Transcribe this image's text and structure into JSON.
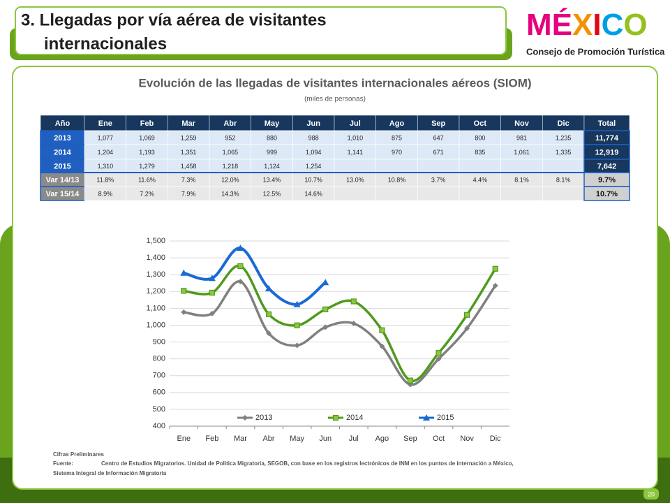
{
  "header": {
    "title_lines": [
      "3. Llegadas por vía aérea de visitantes",
      "internacionales"
    ],
    "logo_letters": [
      "M",
      "É",
      "X",
      "I",
      "C",
      "O"
    ],
    "logo_colors": [
      "#e5007e",
      "#e5007e",
      "#f39200",
      "#e30613",
      "#009fe3",
      "#95c11f"
    ],
    "logo_subtitle": "Consejo de Promoción Turística"
  },
  "table": {
    "title": "Evolución de las llegadas de visitantes internacionales aéreos  (SIOM)",
    "subtitle": "(miles de personas)",
    "columns": [
      "Año",
      "Ene",
      "Feb",
      "Mar",
      "Abr",
      "May",
      "Jun",
      "Jul",
      "Ago",
      "Sep",
      "Oct",
      "Nov",
      "Dic",
      "Total"
    ],
    "rows": [
      [
        "2013",
        "1,077",
        "1,069",
        "1,259",
        "952",
        "880",
        "988",
        "1,010",
        "875",
        "647",
        "800",
        "981",
        "1,235",
        "11,774"
      ],
      [
        "2014",
        "1,204",
        "1,193",
        "1,351",
        "1,065",
        "999",
        "1,094",
        "1,141",
        "970",
        "671",
        "835",
        "1,061",
        "1,335",
        "12,919"
      ],
      [
        "2015",
        "1,310",
        "1,279",
        "1,458",
        "1,218",
        "1,124",
        "1,254",
        null,
        null,
        null,
        null,
        null,
        null,
        "7,642"
      ],
      [
        "Var 14/13",
        "11.8%",
        "11.6%",
        "7.3%",
        "12.0%",
        "13.4%",
        "10.7%",
        "13.0%",
        "10.8%",
        "3.7%",
        "4.4%",
        "8.1%",
        "8.1%",
        "9.7%"
      ],
      [
        "Var 15/14",
        "8.9%",
        "7.2%",
        "7.9%",
        "14.3%",
        "12.5%",
        "14.6%",
        null,
        null,
        null,
        null,
        null,
        null,
        "10.7%"
      ]
    ]
  },
  "chart_data": {
    "type": "line",
    "categories": [
      "Ene",
      "Feb",
      "Mar",
      "Abr",
      "May",
      "Jun",
      "Jul",
      "Ago",
      "Sep",
      "Oct",
      "Nov",
      "Dic"
    ],
    "series": [
      {
        "name": "2013",
        "color": "#808080",
        "marker": "diamond",
        "values": [
          1077,
          1069,
          1259,
          952,
          880,
          988,
          1010,
          875,
          647,
          800,
          981,
          1235
        ]
      },
      {
        "name": "2014",
        "color": "#4f9a1c",
        "marker": "square",
        "values": [
          1204,
          1193,
          1351,
          1065,
          999,
          1094,
          1141,
          970,
          671,
          835,
          1061,
          1335
        ]
      },
      {
        "name": "2015",
        "color": "#1a6ad6",
        "marker": "triangle",
        "values": [
          1310,
          1279,
          1458,
          1218,
          1124,
          1254,
          null,
          null,
          null,
          null,
          null,
          null
        ]
      }
    ],
    "ylim": [
      400,
      1500
    ],
    "yticks": [
      400,
      500,
      600,
      700,
      800,
      900,
      {
        "value": 1000,
        "label": "1,000"
      },
      {
        "value": 1100,
        "label": "1,100"
      },
      {
        "value": 1200,
        "label": "1,200"
      },
      {
        "value": 1300,
        "label": "1,300"
      },
      {
        "value": 1400,
        "label": "1,400"
      },
      {
        "value": 1500,
        "label": "1,500"
      }
    ],
    "grid": true,
    "legend": "bottom"
  },
  "footer": {
    "note": "Cifras Preliminares",
    "source_label": "Fuente:",
    "source": "Centro de Estudios Migratorios. Unidad de Política Migratoria, SEGOB, con base en los registros lectrónicos de INM en los puntos de internación a México,",
    "source_cont": "Sistema Integral de Información Migratoria",
    "page_number": "20"
  }
}
